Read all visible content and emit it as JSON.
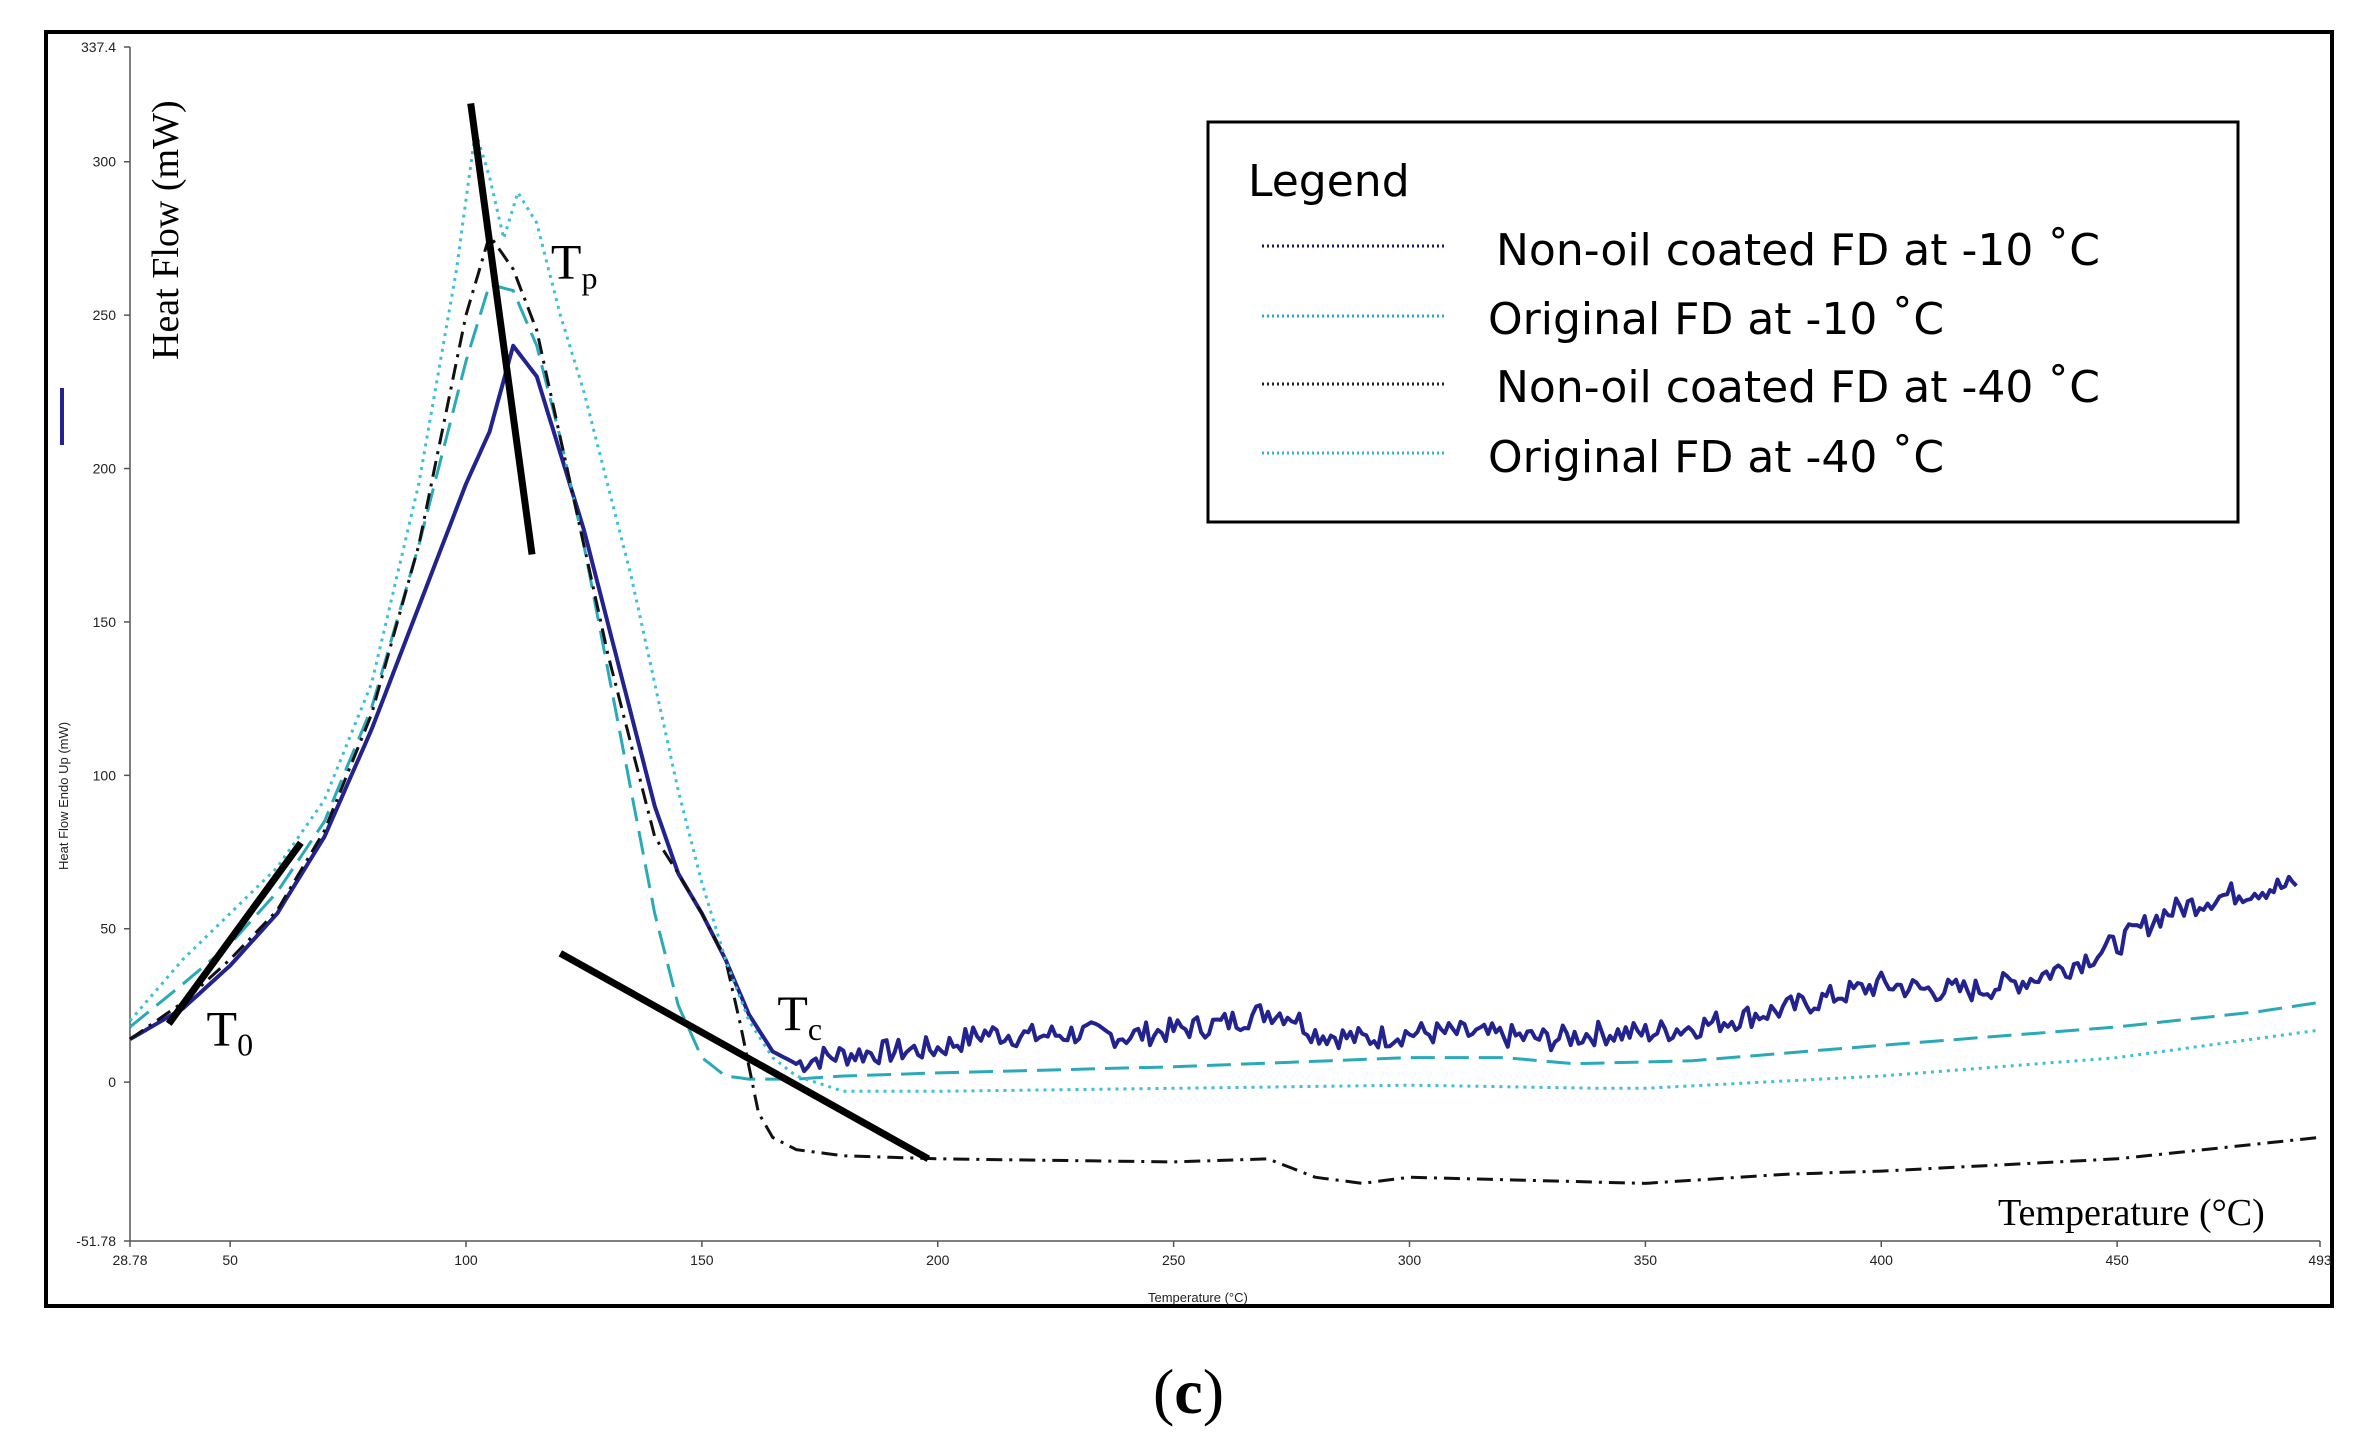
{
  "caption": {
    "open": "(",
    "letter": "c",
    "close": ")"
  },
  "chart_data": {
    "type": "line",
    "title": "",
    "xlabel": "Temperature (°C)",
    "xlabel_small": "Temperature (°C)",
    "ylabel": "Heat Flow (mW)",
    "ylabel_small": "Heat Flow Endo Up (mW)",
    "xlim": [
      28.78,
      493
    ],
    "ylim": [
      -51.78,
      337.4
    ],
    "x_ticks": [
      {
        "v": 28.78,
        "label": "28.78"
      },
      {
        "v": 50,
        "label": "50"
      },
      {
        "v": 100,
        "label": "100"
      },
      {
        "v": 150,
        "label": "150"
      },
      {
        "v": 200,
        "label": "200"
      },
      {
        "v": 250,
        "label": "250"
      },
      {
        "v": 300,
        "label": "300"
      },
      {
        "v": 350,
        "label": "350"
      },
      {
        "v": 400,
        "label": "400"
      },
      {
        "v": 450,
        "label": "450"
      },
      {
        "v": 493,
        "label": "493"
      }
    ],
    "y_ticks": [
      {
        "v": 337.4,
        "label": "337.4"
      },
      {
        "v": 300,
        "label": "300"
      },
      {
        "v": 250,
        "label": "250"
      },
      {
        "v": 200,
        "label": "200"
      },
      {
        "v": 150,
        "label": "150"
      },
      {
        "v": 100,
        "label": "100"
      },
      {
        "v": 50,
        "label": "50"
      },
      {
        "v": 0,
        "label": "0"
      },
      {
        "v": -51.78,
        "label": "-51.78"
      }
    ],
    "legend": {
      "title": "Legend",
      "entries": [
        {
          "label": "Non-oil coated FD at -10 ˚C",
          "color": "#1a1a5e",
          "dash": "2,3"
        },
        {
          "label": "Original FD at -10 ˚C",
          "color": "#2aa9c9",
          "dash": "2,3"
        },
        {
          "label": "Non-oil coated FD at -40 ˚C",
          "color": "#222222",
          "dash": "2,3"
        },
        {
          "label": "Original FD at -40 ˚C",
          "color": "#2ab8d8",
          "dash": "2,3"
        }
      ]
    },
    "series": [
      {
        "name": "Non-oil coated FD at -10 ˚C",
        "color": "#23238f",
        "width": 4,
        "dash": "",
        "noise": 4,
        "points": [
          [
            28.78,
            14
          ],
          [
            40,
            24
          ],
          [
            50,
            38
          ],
          [
            60,
            55
          ],
          [
            70,
            80
          ],
          [
            80,
            115
          ],
          [
            90,
            155
          ],
          [
            100,
            195
          ],
          [
            105,
            212
          ],
          [
            110,
            240
          ],
          [
            115,
            230
          ],
          [
            120,
            205
          ],
          [
            125,
            180
          ],
          [
            130,
            150
          ],
          [
            135,
            120
          ],
          [
            140,
            90
          ],
          [
            145,
            68
          ],
          [
            150,
            55
          ],
          [
            155,
            40
          ],
          [
            160,
            22
          ],
          [
            165,
            10
          ],
          [
            170,
            6
          ],
          [
            175,
            8
          ],
          [
            180,
            9
          ],
          [
            190,
            10
          ],
          [
            200,
            11
          ],
          [
            210,
            16
          ],
          [
            220,
            15
          ],
          [
            230,
            16
          ],
          [
            240,
            15
          ],
          [
            250,
            17
          ],
          [
            260,
            19
          ],
          [
            270,
            23
          ],
          [
            275,
            22
          ],
          [
            280,
            16
          ],
          [
            290,
            14
          ],
          [
            300,
            16
          ],
          [
            310,
            16
          ],
          [
            320,
            15
          ],
          [
            330,
            14
          ],
          [
            340,
            16
          ],
          [
            350,
            16
          ],
          [
            360,
            18
          ],
          [
            370,
            21
          ],
          [
            380,
            24
          ],
          [
            390,
            28
          ],
          [
            400,
            32
          ],
          [
            410,
            30
          ],
          [
            420,
            30
          ],
          [
            430,
            33
          ],
          [
            440,
            38
          ],
          [
            450,
            45
          ],
          [
            460,
            55
          ],
          [
            470,
            60
          ],
          [
            480,
            63
          ],
          [
            488,
            64
          ]
        ]
      },
      {
        "name": "Original FD at -10 ˚C",
        "color": "#2aa9b9",
        "width": 3,
        "dash": "24,10",
        "noise": 0,
        "points": [
          [
            28.78,
            18
          ],
          [
            40,
            32
          ],
          [
            50,
            45
          ],
          [
            60,
            62
          ],
          [
            70,
            85
          ],
          [
            80,
            122
          ],
          [
            90,
            175
          ],
          [
            100,
            235
          ],
          [
            105,
            260
          ],
          [
            110,
            258
          ],
          [
            115,
            240
          ],
          [
            120,
            210
          ],
          [
            125,
            175
          ],
          [
            130,
            135
          ],
          [
            135,
            95
          ],
          [
            140,
            55
          ],
          [
            145,
            25
          ],
          [
            150,
            8
          ],
          [
            155,
            2
          ],
          [
            160,
            1
          ],
          [
            170,
            1
          ],
          [
            180,
            2
          ],
          [
            200,
            3
          ],
          [
            250,
            5
          ],
          [
            300,
            8
          ],
          [
            320,
            8
          ],
          [
            335,
            6
          ],
          [
            360,
            7
          ],
          [
            400,
            12
          ],
          [
            450,
            18
          ],
          [
            480,
            23
          ],
          [
            493,
            26
          ]
        ]
      },
      {
        "name": "Non-oil coated FD at -40 ˚C",
        "color": "#111111",
        "width": 3,
        "dash": "16,7,3,7",
        "noise": 0,
        "points": [
          [
            28.78,
            14
          ],
          [
            40,
            26
          ],
          [
            50,
            40
          ],
          [
            60,
            56
          ],
          [
            70,
            82
          ],
          [
            80,
            120
          ],
          [
            90,
            175
          ],
          [
            100,
            250
          ],
          [
            105,
            276
          ],
          [
            110,
            265
          ],
          [
            115,
            245
          ],
          [
            120,
            210
          ],
          [
            125,
            175
          ],
          [
            130,
            140
          ],
          [
            135,
            110
          ],
          [
            140,
            80
          ],
          [
            145,
            68
          ],
          [
            150,
            55
          ],
          [
            155,
            40
          ],
          [
            158,
            20
          ],
          [
            162,
            -10
          ],
          [
            165,
            -18
          ],
          [
            170,
            -22
          ],
          [
            180,
            -24
          ],
          [
            200,
            -25
          ],
          [
            250,
            -26
          ],
          [
            270,
            -25
          ],
          [
            280,
            -31
          ],
          [
            290,
            -33
          ],
          [
            300,
            -31
          ],
          [
            350,
            -33
          ],
          [
            380,
            -30
          ],
          [
            400,
            -29
          ],
          [
            450,
            -25
          ],
          [
            493,
            -18
          ]
        ]
      },
      {
        "name": "Original FD at -40 ˚C",
        "color": "#3bc0d8",
        "width": 3,
        "dash": "3,5",
        "noise": 0,
        "points": [
          [
            28.78,
            20
          ],
          [
            40,
            40
          ],
          [
            50,
            55
          ],
          [
            60,
            70
          ],
          [
            70,
            92
          ],
          [
            80,
            130
          ],
          [
            90,
            195
          ],
          [
            98,
            265
          ],
          [
            102,
            310
          ],
          [
            105,
            295
          ],
          [
            108,
            275
          ],
          [
            111,
            290
          ],
          [
            115,
            280
          ],
          [
            120,
            250
          ],
          [
            125,
            225
          ],
          [
            130,
            195
          ],
          [
            135,
            165
          ],
          [
            140,
            130
          ],
          [
            145,
            95
          ],
          [
            150,
            65
          ],
          [
            155,
            40
          ],
          [
            160,
            20
          ],
          [
            165,
            8
          ],
          [
            170,
            2
          ],
          [
            180,
            -3
          ],
          [
            200,
            -3
          ],
          [
            250,
            -2
          ],
          [
            300,
            -1
          ],
          [
            340,
            -2
          ],
          [
            350,
            -2
          ],
          [
            400,
            2
          ],
          [
            450,
            8
          ],
          [
            493,
            17
          ]
        ]
      }
    ],
    "annotations": [
      {
        "name": "T0",
        "main": "T",
        "sub": "0",
        "x1": 37,
        "y1": 19,
        "x2": 65,
        "y2": 78,
        "tx": 45,
        "ty": 12
      },
      {
        "name": "Tp",
        "main": "T",
        "sub": "p",
        "x1": 101,
        "y1": 319,
        "x2": 114,
        "y2": 172,
        "tx": 118,
        "ty": 262
      },
      {
        "name": "Tc",
        "main": "T",
        "sub": "c",
        "x1": 120,
        "y1": 42,
        "x2": 198,
        "y2": -25,
        "tx": 166,
        "ty": 17
      }
    ]
  }
}
